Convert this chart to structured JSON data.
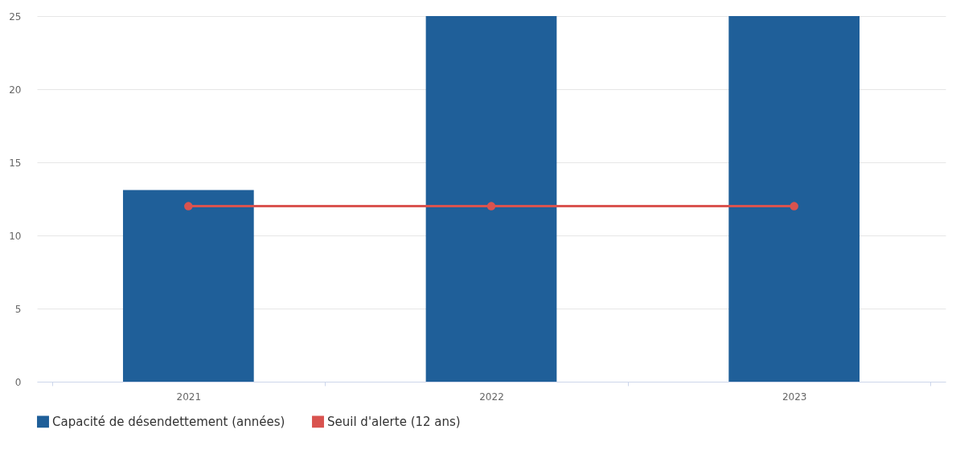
{
  "chart_data": {
    "type": "bar",
    "categories": [
      "2021",
      "2022",
      "2023"
    ],
    "series": [
      {
        "name": "Capacité de désendettement (années)",
        "color": "#1f5f99",
        "values": [
          13.1,
          25,
          25
        ]
      },
      {
        "name": "Seuil d'alerte (12 ans)",
        "color": "#d9534f",
        "type": "line",
        "values": [
          12,
          12,
          12
        ]
      }
    ],
    "ylim": [
      0,
      25
    ],
    "yticks": [
      0,
      5,
      10,
      15,
      20,
      25
    ],
    "grid": "y",
    "legend": "bottom",
    "marker": "circle"
  }
}
